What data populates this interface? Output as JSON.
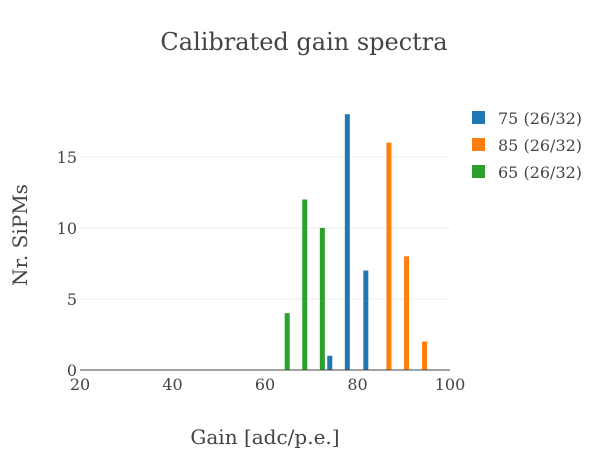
{
  "chart_data": {
    "type": "bar",
    "title": "Calibrated gain spectra",
    "xlabel": "Gain [adc/p.e.]",
    "ylabel": "Nr. SiPMs",
    "xlim": [
      20,
      100
    ],
    "ylim": [
      0,
      19
    ],
    "xticks": [
      20,
      40,
      60,
      80,
      100
    ],
    "yticks": [
      0,
      5,
      10,
      15
    ],
    "grid": "horizontal",
    "legend_position": "top-right",
    "series": [
      {
        "name": "75 (26/32)",
        "color": "#1f77b4",
        "x": [
          74.0,
          77.8,
          81.8
        ],
        "values": [
          1,
          18,
          7
        ]
      },
      {
        "name": "85 (26/32)",
        "color": "#ff7f0e",
        "x": [
          86.8,
          90.6,
          94.5
        ],
        "values": [
          16,
          8,
          2
        ]
      },
      {
        "name": "65 (26/32)",
        "color": "#2ca02c",
        "x": [
          64.8,
          68.6,
          72.4
        ],
        "values": [
          4,
          12,
          10
        ]
      }
    ]
  }
}
